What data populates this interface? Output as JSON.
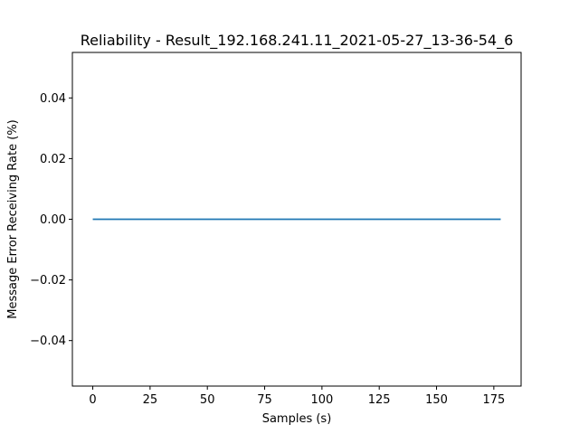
{
  "chart_data": {
    "type": "line",
    "title": "Reliability - Result_192.168.241.11_2021-05-27_13-36-54_6",
    "xlabel": "Samples (s)",
    "ylabel": "Message Error Receiving Rate (%)",
    "xlim": [
      -8.9,
      186.9
    ],
    "ylim": [
      -0.055,
      0.055
    ],
    "xticks": [
      0,
      25,
      50,
      75,
      100,
      125,
      150,
      175
    ],
    "xtick_labels": [
      "0",
      "25",
      "50",
      "75",
      "100",
      "125",
      "150",
      "175"
    ],
    "yticks": [
      -0.04,
      -0.02,
      0.0,
      0.02,
      0.04
    ],
    "ytick_labels": [
      "−0.04",
      "−0.02",
      "0.00",
      "0.02",
      "0.04"
    ],
    "grid": false,
    "series": [
      {
        "color": "#1f77b4",
        "x": [
          0,
          178
        ],
        "y": [
          0,
          0
        ]
      }
    ]
  }
}
